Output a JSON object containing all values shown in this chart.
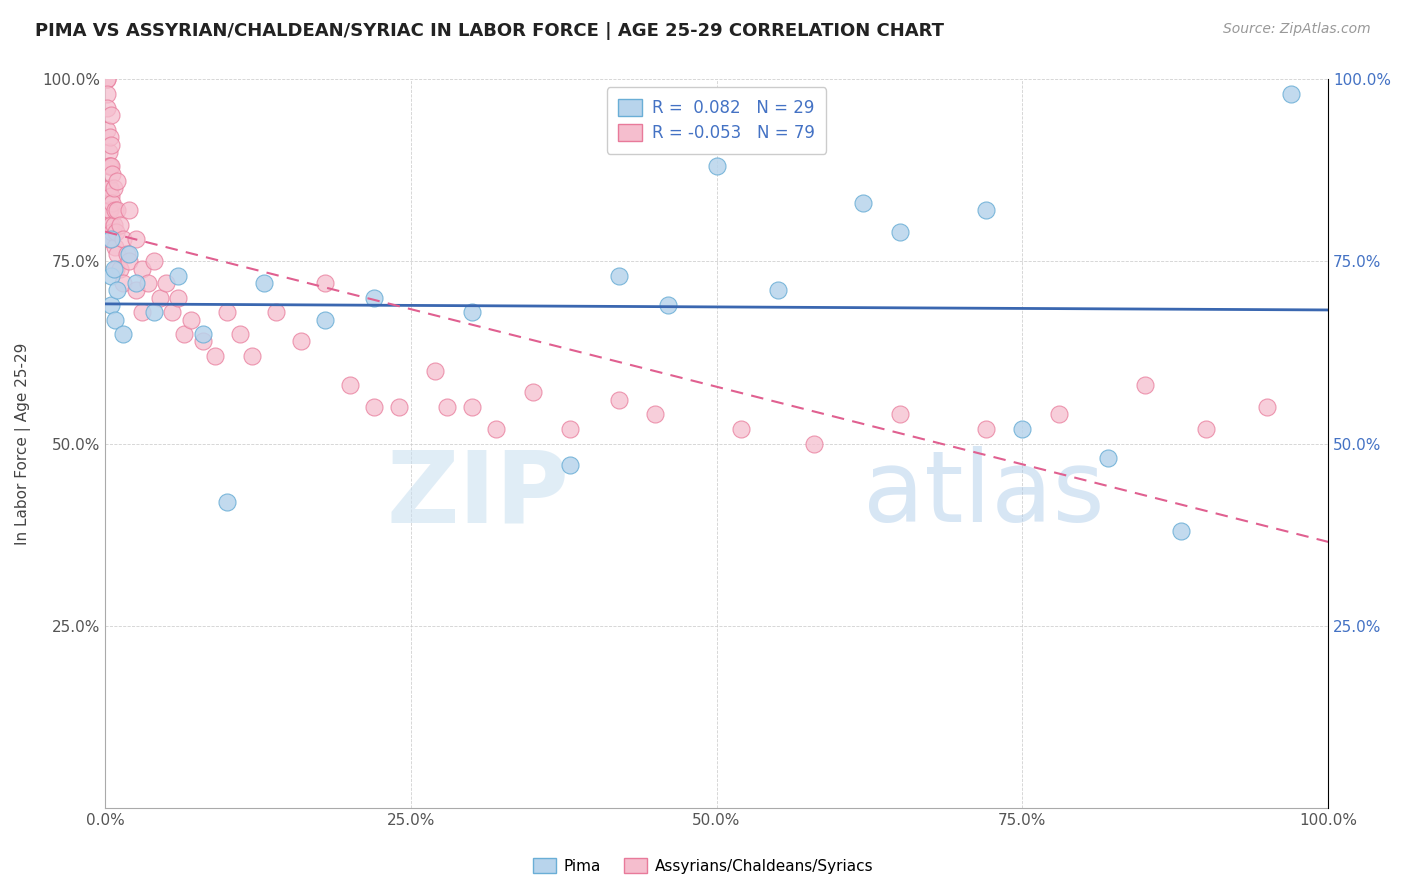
{
  "title": "PIMA VS ASSYRIAN/CHALDEAN/SYRIAC IN LABOR FORCE | AGE 25-29 CORRELATION CHART",
  "source_text": "Source: ZipAtlas.com",
  "ylabel": "In Labor Force | Age 25-29",
  "xlim": [
    0.0,
    1.0
  ],
  "ylim": [
    0.0,
    1.0
  ],
  "xticks": [
    0.0,
    0.25,
    0.5,
    0.75,
    1.0
  ],
  "yticks": [
    0.0,
    0.25,
    0.5,
    0.75,
    1.0
  ],
  "xticklabels": [
    "0.0%",
    "25.0%",
    "50.0%",
    "75.0%",
    "100.0%"
  ],
  "yticklabels": [
    "",
    "25.0%",
    "50.0%",
    "75.0%",
    "100.0%"
  ],
  "right_yticklabels": [
    "",
    "25.0%",
    "50.0%",
    "75.0%",
    "100.0%"
  ],
  "pima_color": "#b8d4ec",
  "pima_edge_color": "#6aaed6",
  "assyrian_color": "#f5bece",
  "assyrian_edge_color": "#e87a9a",
  "trend_pima_color": "#3a67b0",
  "trend_assyrian_color": "#e06090",
  "legend_R_pima": "0.082",
  "legend_N_pima": "29",
  "legend_R_assyrian": "-0.053",
  "legend_N_assyrian": "79",
  "watermark_zip": "ZIP",
  "watermark_atlas": "atlas",
  "pima_x": [
    0.005,
    0.005,
    0.005,
    0.007,
    0.008,
    0.01,
    0.015,
    0.02,
    0.025,
    0.04,
    0.06,
    0.08,
    0.1,
    0.13,
    0.18,
    0.22,
    0.3,
    0.38,
    0.42,
    0.46,
    0.5,
    0.55,
    0.62,
    0.65,
    0.72,
    0.75,
    0.82,
    0.88,
    0.97
  ],
  "pima_y": [
    0.78,
    0.73,
    0.69,
    0.74,
    0.67,
    0.71,
    0.65,
    0.76,
    0.72,
    0.68,
    0.73,
    0.65,
    0.42,
    0.72,
    0.67,
    0.7,
    0.68,
    0.47,
    0.73,
    0.69,
    0.88,
    0.71,
    0.83,
    0.79,
    0.82,
    0.52,
    0.48,
    0.38,
    0.98
  ],
  "assyrian_x": [
    0.002,
    0.002,
    0.002,
    0.002,
    0.002,
    0.003,
    0.003,
    0.003,
    0.003,
    0.003,
    0.003,
    0.004,
    0.004,
    0.004,
    0.004,
    0.004,
    0.005,
    0.005,
    0.005,
    0.005,
    0.005,
    0.006,
    0.006,
    0.006,
    0.007,
    0.007,
    0.008,
    0.008,
    0.009,
    0.009,
    0.01,
    0.01,
    0.01,
    0.012,
    0.012,
    0.015,
    0.015,
    0.018,
    0.02,
    0.02,
    0.025,
    0.025,
    0.03,
    0.03,
    0.035,
    0.04,
    0.045,
    0.05,
    0.055,
    0.06,
    0.065,
    0.07,
    0.08,
    0.09,
    0.1,
    0.11,
    0.12,
    0.14,
    0.16,
    0.18,
    0.2,
    0.22,
    0.24,
    0.27,
    0.28,
    0.3,
    0.32,
    0.35,
    0.38,
    0.42,
    0.45,
    0.52,
    0.58,
    0.65,
    0.72,
    0.78,
    0.85,
    0.9,
    0.95
  ],
  "assyrian_y": [
    1.0,
    1.0,
    0.98,
    0.96,
    0.93,
    0.9,
    0.88,
    0.85,
    0.82,
    0.8,
    0.78,
    0.92,
    0.88,
    0.85,
    0.82,
    0.78,
    0.95,
    0.91,
    0.88,
    0.84,
    0.8,
    0.87,
    0.83,
    0.79,
    0.85,
    0.8,
    0.82,
    0.77,
    0.79,
    0.74,
    0.86,
    0.82,
    0.76,
    0.8,
    0.74,
    0.78,
    0.72,
    0.76,
    0.82,
    0.75,
    0.78,
    0.71,
    0.74,
    0.68,
    0.72,
    0.75,
    0.7,
    0.72,
    0.68,
    0.7,
    0.65,
    0.67,
    0.64,
    0.62,
    0.68,
    0.65,
    0.62,
    0.68,
    0.64,
    0.72,
    0.58,
    0.55,
    0.55,
    0.6,
    0.55,
    0.55,
    0.52,
    0.57,
    0.52,
    0.56,
    0.54,
    0.52,
    0.5,
    0.54,
    0.52,
    0.54,
    0.58,
    0.52,
    0.55
  ]
}
